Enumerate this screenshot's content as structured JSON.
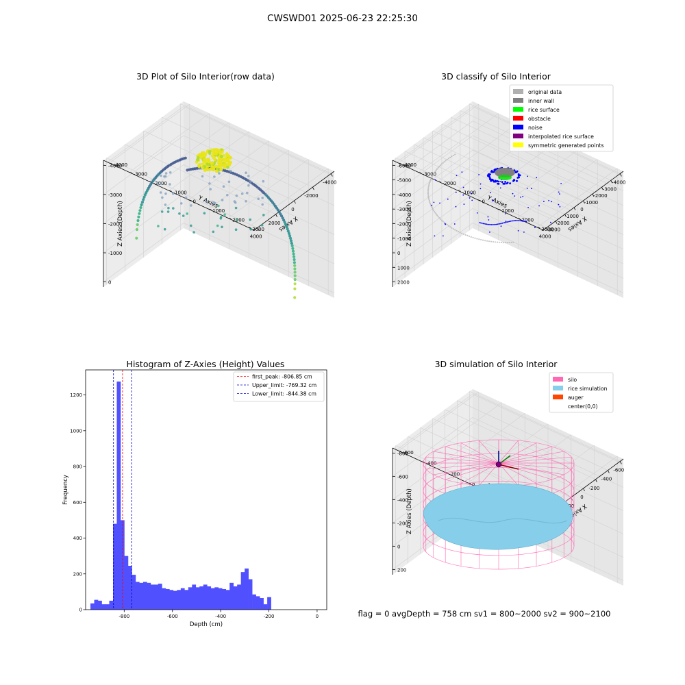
{
  "figure": {
    "suptitle": "CWSWD01 2025-06-23 22:25:30",
    "footer": "flag = 0     avgDepth = 758 cm  sv1 = 800~2000  sv2 = 900~2100"
  },
  "colors": {
    "histogram_bar": "#5050ff",
    "peak_line": "#ff0000",
    "limit_line": "#0000cc",
    "silo_wire": "#ff69b4",
    "rice_simulation": "#87ceeb",
    "auger": "#ff4500"
  },
  "chart_data": [
    {
      "id": "raw3d",
      "type": "scatter",
      "projection": "3d",
      "title": "3D Plot of Silo Interior(row data)",
      "xlabel": "X Axies",
      "ylabel": "Y Axies",
      "zlabel": "Z Axies (Depth)",
      "x_ticks": [
        "-4000",
        "-2000",
        "0",
        "2000",
        "4000"
      ],
      "y_ticks": [
        "-4000",
        "-3000",
        "-2000",
        "-1000",
        "0",
        "1000",
        "2000",
        "3000"
      ],
      "z_ticks": [
        "-4000",
        "-3000",
        "-2000",
        "-1000",
        "0"
      ],
      "colormap": "viridis",
      "grid": true
    },
    {
      "id": "classify3d",
      "type": "scatter",
      "projection": "3d",
      "title": "3D classify of Silo Interior",
      "xlabel": "X Axies",
      "ylabel": "Y Axies",
      "zlabel": "Z Axies (Depth)",
      "x_ticks": [
        "-4000",
        "-3000",
        "-2000",
        "-1000",
        "0",
        "1000",
        "2000",
        "3000",
        "4000"
      ],
      "y_ticks": [
        "-4000",
        "-3000",
        "-2000",
        "-1000",
        "0",
        "1000",
        "2000",
        "3000"
      ],
      "z_ticks": [
        "-6000",
        "-5000",
        "-4000",
        "-3000",
        "-2000",
        "-1000",
        "0",
        "1000",
        "2000"
      ],
      "legend_position": "top-right",
      "legend": [
        {
          "label": "original data",
          "color": "#b0b0b0"
        },
        {
          "label": "inner wall",
          "color": "#808080"
        },
        {
          "label": "rice surface",
          "color": "#00ff00"
        },
        {
          "label": "obstacle",
          "color": "#ff0000"
        },
        {
          "label": "noise",
          "color": "#0000ff"
        },
        {
          "label": "interpolated rice surface",
          "color": "#800080"
        },
        {
          "label": "symmetric generated points",
          "color": "#ffff00"
        }
      ],
      "grid": true
    },
    {
      "id": "histogram",
      "type": "bar",
      "title": "Histogram of Z-Axies (Height) Values",
      "xlabel": "Depth (cm)",
      "ylabel": "Frequency",
      "xlim": [
        -960,
        40
      ],
      "ylim": [
        0,
        1340
      ],
      "x_ticks": [
        -800,
        -600,
        -400,
        -200,
        0
      ],
      "y_ticks": [
        0,
        200,
        400,
        600,
        800,
        1000,
        1200
      ],
      "bin_start": -940,
      "bin_width": 15.6,
      "counts": [
        35,
        55,
        50,
        30,
        30,
        50,
        480,
        1275,
        500,
        300,
        245,
        195,
        155,
        150,
        155,
        150,
        140,
        140,
        145,
        120,
        115,
        110,
        105,
        110,
        120,
        110,
        125,
        140,
        125,
        130,
        140,
        130,
        120,
        125,
        120,
        115,
        110,
        150,
        130,
        140,
        210,
        230,
        170,
        85,
        75,
        65,
        30,
        70
      ],
      "vlines": [
        {
          "label": "first_peak: -806.85 cm",
          "x": -806.85,
          "color": "#ff0000"
        },
        {
          "label": "Upper_limit: -769.32 cm",
          "x": -769.32,
          "color": "#0000cc"
        },
        {
          "label": "Lower_limit: -844.38 cm",
          "x": -844.38,
          "color": "#0000cc"
        }
      ],
      "legend_position": "top-right",
      "grid": false
    },
    {
      "id": "simulation3d",
      "type": "surface",
      "projection": "3d",
      "title": "3D simulation of Silo Interior",
      "xlabel": "X Axies",
      "ylabel": "Y Axies",
      "zlabel": "Z Axies (Depth)",
      "x_ticks": [
        "-600",
        "-400",
        "-200",
        "0",
        "200",
        "400",
        "600"
      ],
      "y_ticks": [
        "-600",
        "-400",
        "-200",
        "0",
        "200",
        "400",
        "600"
      ],
      "z_ticks": [
        "-800",
        "-600",
        "-400",
        "-200",
        "0",
        "200"
      ],
      "legend_position": "top-right",
      "legend": [
        {
          "label": "silo",
          "color": "#ff69b4"
        },
        {
          "label": "rice simulation",
          "color": "#87ceeb"
        },
        {
          "label": "auger",
          "color": "#ff4500"
        },
        {
          "label": "center(0,0)",
          "color": ""
        }
      ],
      "grid": true
    }
  ]
}
